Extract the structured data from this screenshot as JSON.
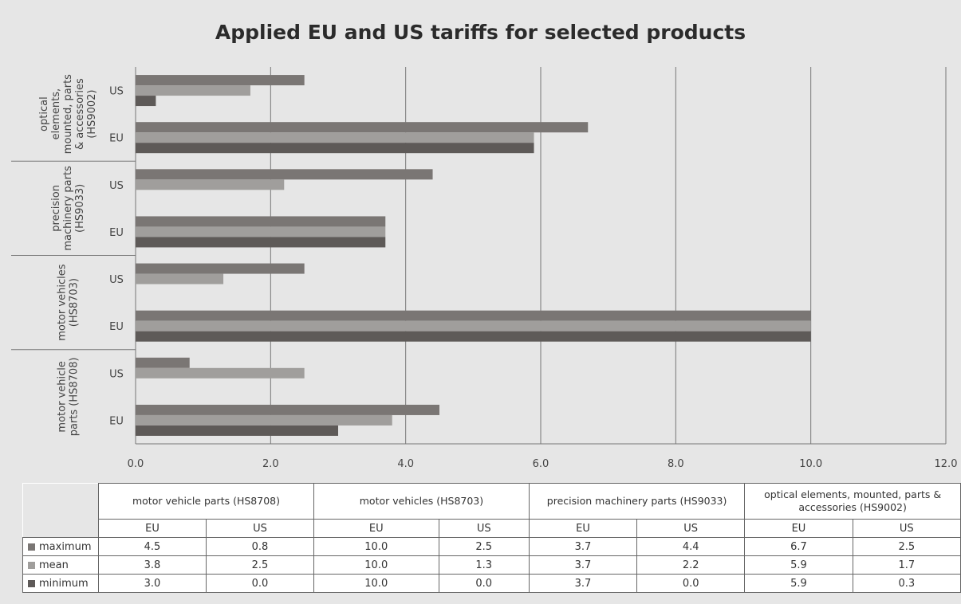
{
  "chart_data": {
    "type": "bar",
    "orientation": "horizontal",
    "title": "Applied EU and US tariffs for selected products",
    "xlim": [
      0,
      12
    ],
    "xticks": [
      "0.0",
      "2.0",
      "4.0",
      "6.0",
      "8.0",
      "10.0",
      "12.0"
    ],
    "categories": [
      {
        "name": "optical elements, mounted, parts & accessories (HS9002)",
        "axis_lines": [
          "optical",
          "elements,",
          "mounted, parts",
          "& accessories",
          "(HS9002)"
        ],
        "table_lines": [
          "optical elements, mounted, parts &",
          "accessories (HS9002)"
        ]
      },
      {
        "name": "precision machinery parts (HS9033)",
        "axis_lines": [
          "precision",
          "machinery parts",
          "(HS9033)"
        ],
        "table_lines": [
          "precision machinery parts (HS9033)"
        ]
      },
      {
        "name": "motor vehicles (HS8703)",
        "axis_lines": [
          "motor vehicles",
          "(HS8703)"
        ],
        "table_lines": [
          "motor vehicles (HS8703)"
        ]
      },
      {
        "name": "motor vehicle parts (HS8708)",
        "axis_lines": [
          "motor vehicle",
          "parts (HS8708)"
        ],
        "table_lines": [
          "motor vehicle parts (HS8708)"
        ]
      }
    ],
    "subcategories": [
      "US",
      "EU"
    ],
    "series": [
      {
        "name": "maximum",
        "color": "#7a7674",
        "values": {
          "HS9002": {
            "US": 2.5,
            "EU": 6.7
          },
          "HS9033": {
            "US": 4.4,
            "EU": 3.7
          },
          "HS8703": {
            "US": 2.5,
            "EU": 10.0
          },
          "HS8708": {
            "US": 0.8,
            "EU": 4.5
          }
        }
      },
      {
        "name": "mean",
        "color": "#a09e9c",
        "values": {
          "HS9002": {
            "US": 1.7,
            "EU": 5.9
          },
          "HS9033": {
            "US": 2.2,
            "EU": 3.7
          },
          "HS8703": {
            "US": 1.3,
            "EU": 10.0
          },
          "HS8708": {
            "US": 2.5,
            "EU": 3.8
          }
        }
      },
      {
        "name": "minimum",
        "color": "#5e5a58",
        "values": {
          "HS9002": {
            "US": 0.3,
            "EU": 5.9
          },
          "HS9033": {
            "US": 0.0,
            "EU": 3.7
          },
          "HS8703": {
            "US": 0.0,
            "EU": 10.0
          },
          "HS8708": {
            "US": 0.0,
            "EU": 3.0
          }
        }
      }
    ],
    "table": {
      "column_groups": [
        {
          "label": "motor vehicle parts (HS8708)",
          "code": "HS8708"
        },
        {
          "label": "motor vehicles (HS8703)",
          "code": "HS8703"
        },
        {
          "label": "precision machinery parts (HS9033)",
          "code": "HS9033"
        },
        {
          "label_lines": [
            "optical elements, mounted, parts &",
            "accessories (HS9002)"
          ],
          "code": "HS9002"
        }
      ],
      "subcolumns": [
        "EU",
        "US"
      ],
      "rows": [
        {
          "series": "maximum",
          "cells": [
            "4.5",
            "0.8",
            "10.0",
            "2.5",
            "3.7",
            "4.4",
            "6.7",
            "2.5"
          ]
        },
        {
          "series": "mean",
          "cells": [
            "3.8",
            "2.5",
            "10.0",
            "1.3",
            "3.7",
            "2.2",
            "5.9",
            "1.7"
          ]
        },
        {
          "series": "minimum",
          "cells": [
            "3.0",
            "0.0",
            "10.0",
            "0.0",
            "3.7",
            "0.0",
            "5.9",
            "0.3"
          ]
        }
      ]
    },
    "grid": "vertical",
    "legend": "in table"
  }
}
